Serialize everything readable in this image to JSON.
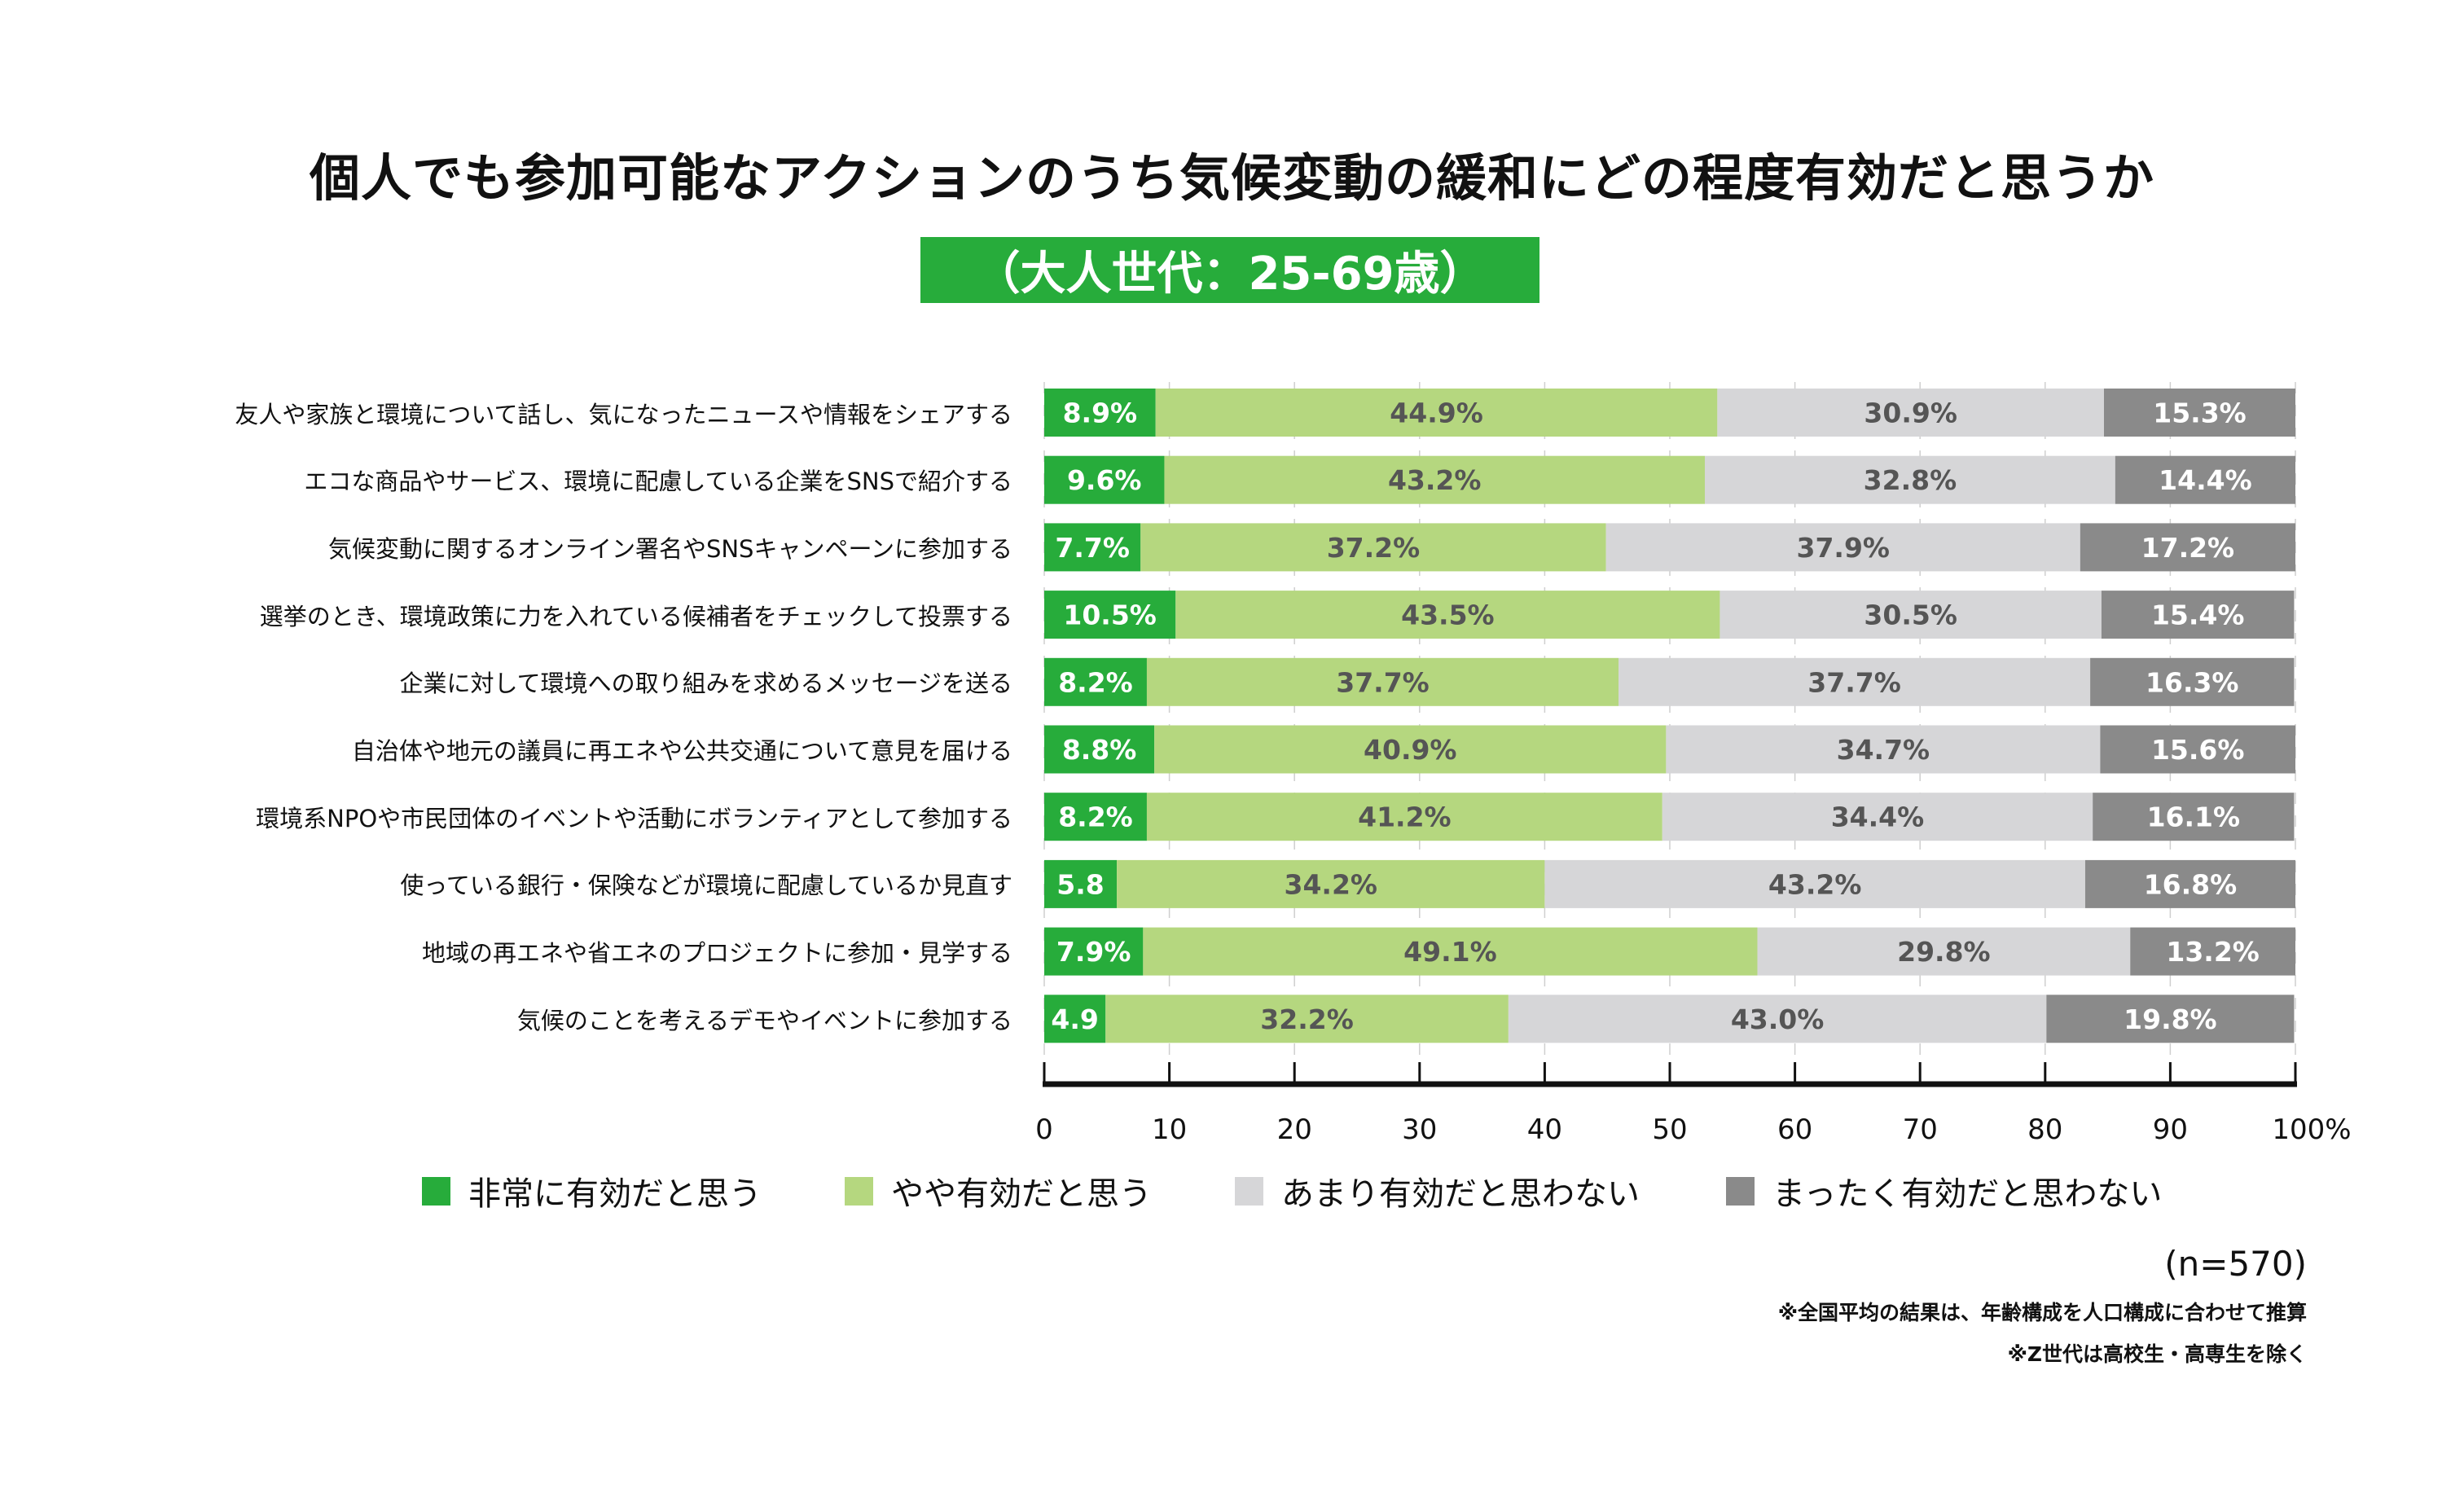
{
  "title": "個人でも参加可能なアクションのうち気候変動の緩和にどの程度有効だと思うか",
  "subtitle": "（大人世代：25-69歳）",
  "sample_size": "(n=570)",
  "notes": [
    "※全国平均の結果は、年齢構成を人口構成に合わせて推算",
    "※Z世代は高校生・高専生を除く"
  ],
  "colors": {
    "very_effective": "#27ac3b",
    "somewhat_effective": "#b5d77f",
    "not_very_effective": "#d6d6d8",
    "not_at_all_effective": "#8a8a8a",
    "label_on_dark": "#ffffff",
    "label_on_light": "#555555",
    "axis": "#111111",
    "gridline": "#cfcfcf"
  },
  "chart_data": {
    "type": "bar",
    "orientation": "horizontal",
    "stacked": true,
    "title": "個人でも参加可能なアクションのうち気候変動の緩和にどの程度有効だと思うか",
    "subtitle": "（大人世代：25-69歳）",
    "xlabel": "",
    "ylabel": "",
    "xlim": [
      0,
      100
    ],
    "x_ticks": [
      0,
      10,
      20,
      30,
      40,
      50,
      60,
      70,
      80,
      90,
      100
    ],
    "x_tick_labels": [
      "0",
      "10",
      "20",
      "30",
      "40",
      "50",
      "60",
      "70",
      "80",
      "90",
      "100%"
    ],
    "grid": true,
    "legend_position": "bottom",
    "categories": [
      "友人や家族と環境について話し、気になったニュースや情報をシェアする",
      "エコな商品やサービス、環境に配慮している企業をSNSで紹介する",
      "気候変動に関するオンライン署名やSNSキャンペーンに参加する",
      "選挙のとき、環境政策に力を入れている候補者をチェックして投票する",
      "企業に対して環境への取り組みを求めるメッセージを送る",
      "自治体や地元の議員に再エネや公共交通について意見を届ける",
      "環境系NPOや市民団体のイベントや活動にボランティアとして参加する",
      "使っている銀行・保険などが環境に配慮しているか見直す",
      "地域の再エネや省エネのプロジェクトに参加・見学する",
      "気候のことを考えるデモやイベントに参加する"
    ],
    "series": [
      {
        "name": "非常に有効だと思う",
        "color": "#27ac3b",
        "values": [
          8.9,
          9.6,
          7.7,
          10.5,
          8.2,
          8.8,
          8.2,
          5.8,
          7.9,
          4.9
        ],
        "labels": [
          "8.9%",
          "9.6%",
          "7.7%",
          "10.5%",
          "8.2%",
          "8.8%",
          "8.2%",
          "5.8",
          "7.9%",
          "4.9"
        ]
      },
      {
        "name": "やや有効だと思う",
        "color": "#b5d77f",
        "values": [
          44.9,
          43.2,
          37.2,
          43.5,
          37.7,
          40.9,
          41.2,
          34.2,
          49.1,
          32.2
        ],
        "labels": [
          "44.9%",
          "43.2%",
          "37.2%",
          "43.5%",
          "37.7%",
          "40.9%",
          "41.2%",
          "34.2%",
          "49.1%",
          "32.2%"
        ]
      },
      {
        "name": "あまり有効だと思わない",
        "color": "#d6d6d8",
        "values": [
          30.9,
          32.8,
          37.9,
          30.5,
          37.7,
          34.7,
          34.4,
          43.2,
          29.8,
          43.0
        ],
        "labels": [
          "30.9%",
          "32.8%",
          "37.9%",
          "30.5%",
          "37.7%",
          "34.7%",
          "34.4%",
          "43.2%",
          "29.8%",
          "43.0%"
        ]
      },
      {
        "name": "まったく有効だと思わない",
        "color": "#8a8a8a",
        "values": [
          15.3,
          14.4,
          17.2,
          15.4,
          16.3,
          15.6,
          16.1,
          16.8,
          13.2,
          19.8
        ],
        "labels": [
          "15.3%",
          "14.4%",
          "17.2%",
          "15.4%",
          "16.3%",
          "15.6%",
          "16.1%",
          "16.8%",
          "13.2%",
          "19.8%"
        ]
      }
    ]
  }
}
